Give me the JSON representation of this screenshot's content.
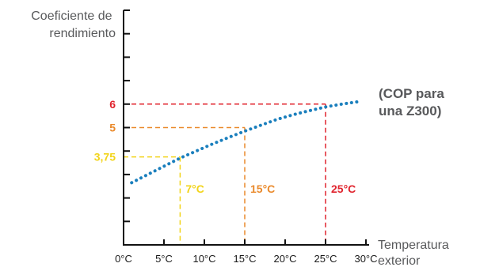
{
  "chart_data": {
    "type": "line",
    "ylabel": [
      "Coeficiente de",
      "rendimiento"
    ],
    "xlabel": [
      "Temperatura",
      "exterior"
    ],
    "x_ticks": [
      0,
      5,
      10,
      15,
      20,
      25,
      30
    ],
    "x_tick_labels": [
      "0°C",
      "5°C",
      "10°C",
      "15°C",
      "20°C",
      "25°C",
      "30°C"
    ],
    "xlim": [
      0,
      30
    ],
    "ylim": [
      0,
      10
    ],
    "y_ticks": [
      1,
      2,
      3,
      4,
      5,
      6,
      7,
      8,
      9,
      10
    ],
    "series": [
      {
        "name": [
          "(COP para",
          "una Z300)"
        ],
        "color": "#1a7fbd",
        "style": "dotted",
        "x": [
          1,
          3,
          5,
          7,
          9,
          11,
          13,
          15,
          17,
          19,
          21,
          23,
          25,
          27,
          29
        ],
        "y": [
          2.65,
          3.0,
          3.35,
          3.7,
          4.0,
          4.3,
          4.58,
          4.85,
          5.1,
          5.35,
          5.55,
          5.72,
          5.88,
          6.0,
          6.1
        ]
      }
    ],
    "reference_points": [
      {
        "x": 7,
        "y": 3.75,
        "value_label": "3,75",
        "temp_label": "7°C",
        "color": "#f2d41a"
      },
      {
        "x": 15,
        "y": 5,
        "value_label": "5",
        "temp_label": "15°C",
        "color": "#ea8a2c"
      },
      {
        "x": 25,
        "y": 6,
        "value_label": "6",
        "temp_label": "25°C",
        "color": "#e0242e"
      }
    ]
  }
}
